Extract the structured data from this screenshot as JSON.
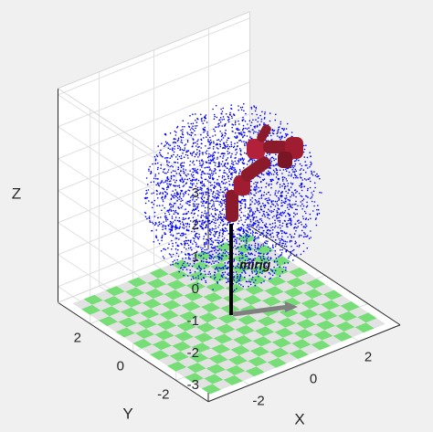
{
  "chart_data": {
    "type": "scatter3d",
    "xlabel": "X",
    "ylabel": "Y",
    "zlabel": "Z",
    "xlim": [
      -3.5,
      3.5
    ],
    "ylim": [
      -3.5,
      3.5
    ],
    "zlim": [
      -3.5,
      3.2
    ],
    "xticks": [
      -2,
      0,
      2
    ],
    "yticks": [
      -2,
      0,
      2
    ],
    "zticks": [
      -3,
      -2,
      -1,
      0,
      1,
      2,
      3
    ],
    "annotation": "mirig",
    "grid": true,
    "color": "#0000ff"
  }
}
